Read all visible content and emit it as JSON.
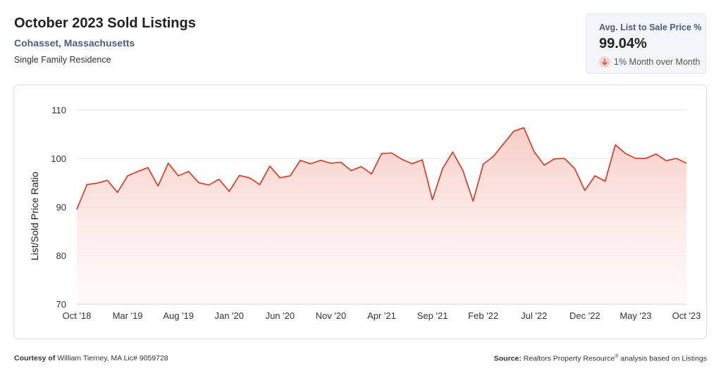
{
  "header": {
    "title": "October 2023 Sold Listings",
    "location": "Cohasset, Massachusetts",
    "property_type": "Single Family Residence"
  },
  "kpi": {
    "label": "Avg. List to Sale Price %",
    "value": "99.04%",
    "change": "1% Month over Month",
    "direction": "down",
    "icon": "arrow-down-icon",
    "accent_color": "#d6452e"
  },
  "footer": {
    "courtesy_label": "Courtesy of",
    "courtesy_name": "William Tierney, MA Lic# 9059728",
    "source_label": "Source:",
    "source_text_pre": "Realtors Property Resource",
    "source_sup": "®",
    "source_text_post": " analysis based on Listings"
  },
  "chart_data": {
    "type": "area",
    "title": "October 2023 Sold Listings",
    "xlabel": "",
    "ylabel": "List/Sold Price Ratio",
    "ylim": [
      70,
      110
    ],
    "yticks": [
      70,
      80,
      90,
      100,
      110
    ],
    "grid": true,
    "line_color": "#d6452e",
    "fill_color": "#f6c9c2",
    "x_tick_labels": [
      "Oct '18",
      "Mar '19",
      "Aug '19",
      "Jan '20",
      "Jun '20",
      "Nov '20",
      "Apr '21",
      "Sep '21",
      "Feb '22",
      "Jul '22",
      "Dec '22",
      "May '23",
      "Oct '23"
    ],
    "x_tick_every": 5,
    "x": [
      "2018-10",
      "2018-11",
      "2018-12",
      "2019-01",
      "2019-02",
      "2019-03",
      "2019-04",
      "2019-05",
      "2019-06",
      "2019-07",
      "2019-08",
      "2019-09",
      "2019-10",
      "2019-11",
      "2019-12",
      "2020-01",
      "2020-02",
      "2020-03",
      "2020-04",
      "2020-05",
      "2020-06",
      "2020-07",
      "2020-08",
      "2020-09",
      "2020-10",
      "2020-11",
      "2020-12",
      "2021-01",
      "2021-02",
      "2021-03",
      "2021-04",
      "2021-05",
      "2021-06",
      "2021-07",
      "2021-08",
      "2021-09",
      "2021-10",
      "2021-11",
      "2021-12",
      "2022-01",
      "2022-02",
      "2022-03",
      "2022-04",
      "2022-05",
      "2022-06",
      "2022-07",
      "2022-08",
      "2022-09",
      "2022-10",
      "2022-11",
      "2022-12",
      "2023-01",
      "2023-02",
      "2023-03",
      "2023-04",
      "2023-05",
      "2023-06",
      "2023-07",
      "2023-08",
      "2023-09",
      "2023-10"
    ],
    "values": [
      89.5,
      94.6,
      94.9,
      95.5,
      93.0,
      96.4,
      97.3,
      98.1,
      94.3,
      99.0,
      96.4,
      97.3,
      95.0,
      94.5,
      95.7,
      93.2,
      96.5,
      96.0,
      94.6,
      98.4,
      96.0,
      96.4,
      99.6,
      98.9,
      99.6,
      99.0,
      99.2,
      97.5,
      98.3,
      96.8,
      101.0,
      101.1,
      99.8,
      98.9,
      99.7,
      91.5,
      97.9,
      101.3,
      97.5,
      91.2,
      98.8,
      100.4,
      103.0,
      105.6,
      106.3,
      101.4,
      98.6,
      99.9,
      100.0,
      97.9,
      93.4,
      96.4,
      95.3,
      102.8,
      101.0,
      100.0,
      100.0,
      100.9,
      99.5,
      100.0,
      99.0
    ]
  }
}
